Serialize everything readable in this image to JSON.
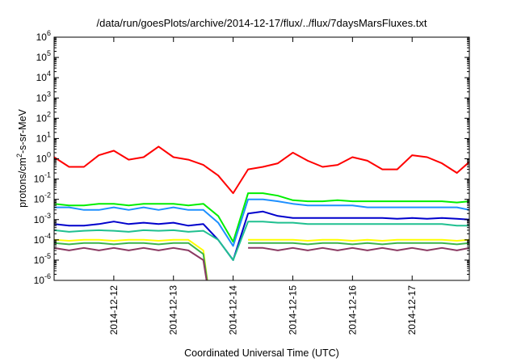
{
  "chart_data": {
    "type": "line",
    "title": "/data/run/goesPlots/archive/2014-12-17/flux/../flux/7daysMarsFluxes.txt",
    "xlabel": "Coordinated Universal Time (UTC)",
    "ylabel": {
      "prefix": "protons/cm",
      "sup": "2",
      "suffix": "-s-sr-MeV"
    },
    "y_scale": "log",
    "ylim": [
      1e-06,
      1000000.0
    ],
    "y_ticks": [
      {
        "exp": "-6",
        "value": 1e-06
      },
      {
        "exp": "-5",
        "value": 1e-05
      },
      {
        "exp": "-4",
        "value": 0.0001
      },
      {
        "exp": "-3",
        "value": 0.001
      },
      {
        "exp": "-2",
        "value": 0.01
      },
      {
        "exp": "-1",
        "value": 0.1
      },
      {
        "exp": "0",
        "value": 1
      },
      {
        "exp": "1",
        "value": 10
      },
      {
        "exp": "2",
        "value": 100
      },
      {
        "exp": "3",
        "value": 1000
      },
      {
        "exp": "4",
        "value": 10000
      },
      {
        "exp": "5",
        "value": 100000
      },
      {
        "exp": "6",
        "value": 1000000
      }
    ],
    "xlim": [
      "2014-12-11T00:00",
      "2014-12-17T23:00"
    ],
    "x_ticks": [
      "2014-12-12",
      "2014-12-13",
      "2014-12-14",
      "2014-12-15",
      "2014-12-16",
      "2014-12-17"
    ],
    "grid": false,
    "legend": "none",
    "x": [
      "2014-12-11T00:00",
      "2014-12-11T06:00",
      "2014-12-11T12:00",
      "2014-12-11T18:00",
      "2014-12-12T00:00",
      "2014-12-12T06:00",
      "2014-12-12T12:00",
      "2014-12-12T18:00",
      "2014-12-13T00:00",
      "2014-12-13T06:00",
      "2014-12-13T12:00",
      "2014-12-13T18:00",
      "2014-12-14T00:00",
      "2014-12-14T06:00",
      "2014-12-14T12:00",
      "2014-12-14T18:00",
      "2014-12-15T00:00",
      "2014-12-15T06:00",
      "2014-12-15T12:00",
      "2014-12-15T18:00",
      "2014-12-16T00:00",
      "2014-12-16T06:00",
      "2014-12-16T12:00",
      "2014-12-16T18:00",
      "2014-12-17T00:00",
      "2014-12-17T06:00",
      "2014-12-17T12:00",
      "2014-12-17T18:00",
      "2014-12-17T23:00"
    ],
    "series": [
      {
        "color": "#ff0000",
        "values": [
          1.2,
          0.4,
          0.4,
          1.5,
          2.5,
          0.9,
          1.2,
          4,
          1.2,
          0.9,
          0.5,
          0.15,
          0.02,
          0.3,
          0.4,
          0.6,
          2.0,
          0.8,
          0.4,
          0.5,
          1.2,
          0.8,
          0.3,
          0.3,
          1.5,
          1.2,
          0.6,
          0.2,
          0.7
        ]
      },
      {
        "color": "#00ee00",
        "values": [
          0.006,
          0.005,
          0.005,
          0.006,
          0.006,
          0.005,
          0.006,
          0.006,
          0.006,
          0.005,
          0.006,
          0.0015,
          8e-05,
          0.02,
          0.02,
          0.015,
          0.009,
          0.008,
          0.008,
          0.009,
          0.008,
          0.008,
          0.008,
          0.008,
          0.008,
          0.008,
          0.008,
          0.007,
          0.008
        ]
      },
      {
        "color": "#1e90ff",
        "values": [
          0.004,
          0.004,
          0.003,
          0.003,
          0.004,
          0.003,
          0.004,
          0.003,
          0.004,
          0.003,
          0.003,
          0.0007,
          5e-05,
          0.01,
          0.01,
          0.008,
          0.006,
          0.005,
          0.005,
          0.005,
          0.005,
          0.004,
          0.004,
          0.004,
          0.004,
          0.004,
          0.004,
          0.004,
          0.003
        ]
      },
      {
        "color": "#0000cc",
        "values": [
          0.0006,
          0.0005,
          0.0005,
          0.0006,
          0.0008,
          0.0006,
          0.0007,
          0.0006,
          0.0007,
          0.0005,
          0.0006,
          0.0001,
          1e-05,
          0.002,
          0.0025,
          0.0015,
          0.0012,
          0.0012,
          0.0012,
          0.0012,
          0.0012,
          0.0012,
          0.0012,
          0.0011,
          0.0012,
          0.0011,
          0.0012,
          0.0011,
          0.001
        ]
      },
      {
        "color": "#20c090",
        "values": [
          0.0003,
          0.00025,
          0.00028,
          0.0003,
          0.00028,
          0.00025,
          0.0003,
          0.00028,
          0.0003,
          0.00025,
          0.00028,
          0.0001,
          1e-05,
          0.0008,
          0.0008,
          0.0007,
          0.0007,
          0.0006,
          0.0006,
          0.0006,
          0.0006,
          0.0006,
          0.0006,
          0.0006,
          0.0006,
          0.0006,
          0.0006,
          0.0005,
          0.0005
        ]
      },
      {
        "color": "#ffff00",
        "values": [
          0.0001,
          9e-05,
          0.0001,
          0.0001,
          9e-05,
          0.0001,
          0.0001,
          9e-05,
          0.0001,
          0.0001,
          3e-05,
          null,
          null,
          0.0001,
          0.0001,
          0.0001,
          0.0001,
          9e-05,
          0.0001,
          0.0001,
          9e-05,
          0.0001,
          9e-05,
          0.0001,
          0.0001,
          0.0001,
          0.0001,
          9e-05,
          0.0001
        ]
      },
      {
        "color": "#3cb44b",
        "values": [
          7e-05,
          6e-05,
          7e-05,
          7e-05,
          6e-05,
          7e-05,
          7e-05,
          6e-05,
          7e-05,
          7e-05,
          2e-05,
          null,
          null,
          7e-05,
          7e-05,
          7e-05,
          7e-05,
          6e-05,
          7e-05,
          7e-05,
          6e-05,
          7e-05,
          6e-05,
          7e-05,
          7e-05,
          7e-05,
          7e-05,
          6e-05,
          7e-05
        ]
      },
      {
        "color": "#8b3a62",
        "values": [
          4e-05,
          3e-05,
          4e-05,
          3e-05,
          4e-05,
          3e-05,
          4e-05,
          3e-05,
          4e-05,
          3e-05,
          1e-05,
          null,
          null,
          4e-05,
          4e-05,
          3e-05,
          4e-05,
          3e-05,
          4e-05,
          3e-05,
          4e-05,
          3e-05,
          4e-05,
          3e-05,
          4e-05,
          3e-05,
          4e-05,
          3e-05,
          4e-05
        ]
      }
    ]
  }
}
